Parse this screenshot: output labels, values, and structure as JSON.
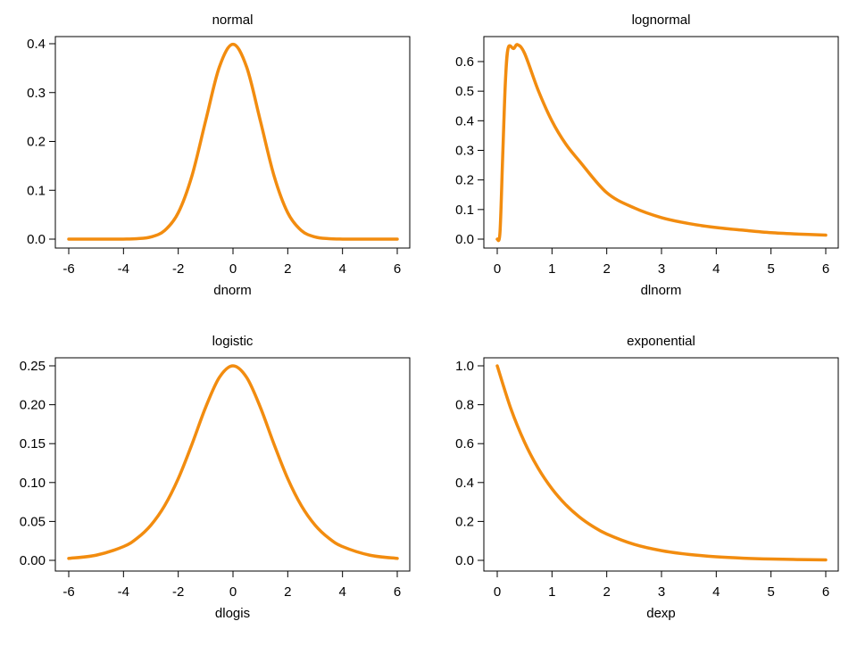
{
  "line_color": "#F28C0F",
  "chart_data": [
    {
      "type": "line",
      "title": "normal",
      "xlabel": "dnorm",
      "ylabel": "",
      "xlim": [
        -6,
        6
      ],
      "ylim": [
        0,
        0.4
      ],
      "xticks": [
        -6,
        -4,
        -2,
        0,
        2,
        4,
        6
      ],
      "yticks": [
        0.0,
        0.1,
        0.2,
        0.3,
        0.4
      ],
      "xtick_labels": [
        "-6",
        "-4",
        "-2",
        "0",
        "2",
        "4",
        "6"
      ],
      "ytick_labels": [
        "0.0",
        "0.1",
        "0.2",
        "0.3",
        "0.4"
      ],
      "x": [
        -6,
        -5,
        -4,
        -3.5,
        -3,
        -2.5,
        -2,
        -1.5,
        -1,
        -0.5,
        0,
        0.5,
        1,
        1.5,
        2,
        2.5,
        3,
        3.5,
        4,
        5,
        6
      ],
      "y": [
        0,
        0,
        0.0001,
        0.0009,
        0.0044,
        0.0175,
        0.054,
        0.1295,
        0.242,
        0.3521,
        0.3989,
        0.3521,
        0.242,
        0.1295,
        0.054,
        0.0175,
        0.0044,
        0.0009,
        0.0001,
        0,
        0
      ],
      "grid": false,
      "legend": "none"
    },
    {
      "type": "line",
      "title": "lognormal",
      "xlabel": "dlnorm",
      "ylabel": "",
      "xlim": [
        0,
        6
      ],
      "ylim": [
        0,
        0.65
      ],
      "xticks": [
        0,
        1,
        2,
        3,
        4,
        5,
        6
      ],
      "yticks": [
        0.0,
        0.1,
        0.2,
        0.3,
        0.4,
        0.5,
        0.6
      ],
      "xtick_labels": [
        "0",
        "1",
        "2",
        "3",
        "4",
        "5",
        "6"
      ],
      "ytick_labels": [
        "0.0",
        "0.1",
        "0.2",
        "0.3",
        "0.4",
        "0.5",
        "0.6"
      ],
      "x": [
        0,
        0.05,
        0.1,
        0.15,
        0.2,
        0.3,
        0.37,
        0.5,
        0.75,
        1,
        1.25,
        1.5,
        2,
        2.5,
        3,
        3.5,
        4,
        4.5,
        5,
        5.5,
        6
      ],
      "y": [
        0,
        0.0228,
        0.2816,
        0.5357,
        0.6463,
        0.6442,
        0.6572,
        0.6274,
        0.502,
        0.3989,
        0.3217,
        0.264,
        0.1569,
        0.1057,
        0.0727,
        0.0526,
        0.0391,
        0.03,
        0.0219,
        0.0171,
        0.0135
      ],
      "grid": false,
      "legend": "none"
    },
    {
      "type": "line",
      "title": "logistic",
      "xlabel": "dlogis",
      "ylabel": "",
      "xlim": [
        -6,
        6
      ],
      "ylim": [
        0,
        0.25
      ],
      "xticks": [
        -6,
        -4,
        -2,
        0,
        2,
        4,
        6
      ],
      "yticks": [
        0.0,
        0.05,
        0.1,
        0.15,
        0.2,
        0.25
      ],
      "xtick_labels": [
        "-6",
        "-4",
        "-2",
        "0",
        "2",
        "4",
        "6"
      ],
      "ytick_labels": [
        "0.00",
        "0.05",
        "0.10",
        "0.15",
        "0.20",
        "0.25"
      ],
      "x": [
        -6,
        -5,
        -4,
        -3.5,
        -3,
        -2.5,
        -2,
        -1.5,
        -1,
        -0.5,
        0,
        0.5,
        1,
        1.5,
        2,
        2.5,
        3,
        3.5,
        4,
        5,
        6
      ],
      "y": [
        0.0025,
        0.0066,
        0.0177,
        0.0285,
        0.0452,
        0.0701,
        0.105,
        0.1491,
        0.1966,
        0.235,
        0.25,
        0.235,
        0.1966,
        0.1491,
        0.105,
        0.0701,
        0.0452,
        0.0285,
        0.0177,
        0.0066,
        0.0025
      ],
      "grid": false,
      "legend": "none"
    },
    {
      "type": "line",
      "title": "exponential",
      "xlabel": "dexp",
      "ylabel": "",
      "xlim": [
        0,
        6
      ],
      "ylim": [
        0,
        1.0
      ],
      "xticks": [
        0,
        1,
        2,
        3,
        4,
        5,
        6
      ],
      "yticks": [
        0.0,
        0.2,
        0.4,
        0.6,
        0.8,
        1.0
      ],
      "xtick_labels": [
        "0",
        "1",
        "2",
        "3",
        "4",
        "5",
        "6"
      ],
      "ytick_labels": [
        "0.0",
        "0.2",
        "0.4",
        "0.6",
        "0.8",
        "1.0"
      ],
      "x": [
        0,
        0.25,
        0.5,
        0.75,
        1,
        1.25,
        1.5,
        1.75,
        2,
        2.5,
        3,
        3.5,
        4,
        4.5,
        5,
        5.5,
        6
      ],
      "y": [
        1.0,
        0.7788,
        0.6065,
        0.4724,
        0.3679,
        0.2865,
        0.2231,
        0.1738,
        0.1353,
        0.0821,
        0.0498,
        0.0302,
        0.0183,
        0.0111,
        0.0067,
        0.0041,
        0.0025
      ],
      "grid": false,
      "legend": "none"
    }
  ]
}
